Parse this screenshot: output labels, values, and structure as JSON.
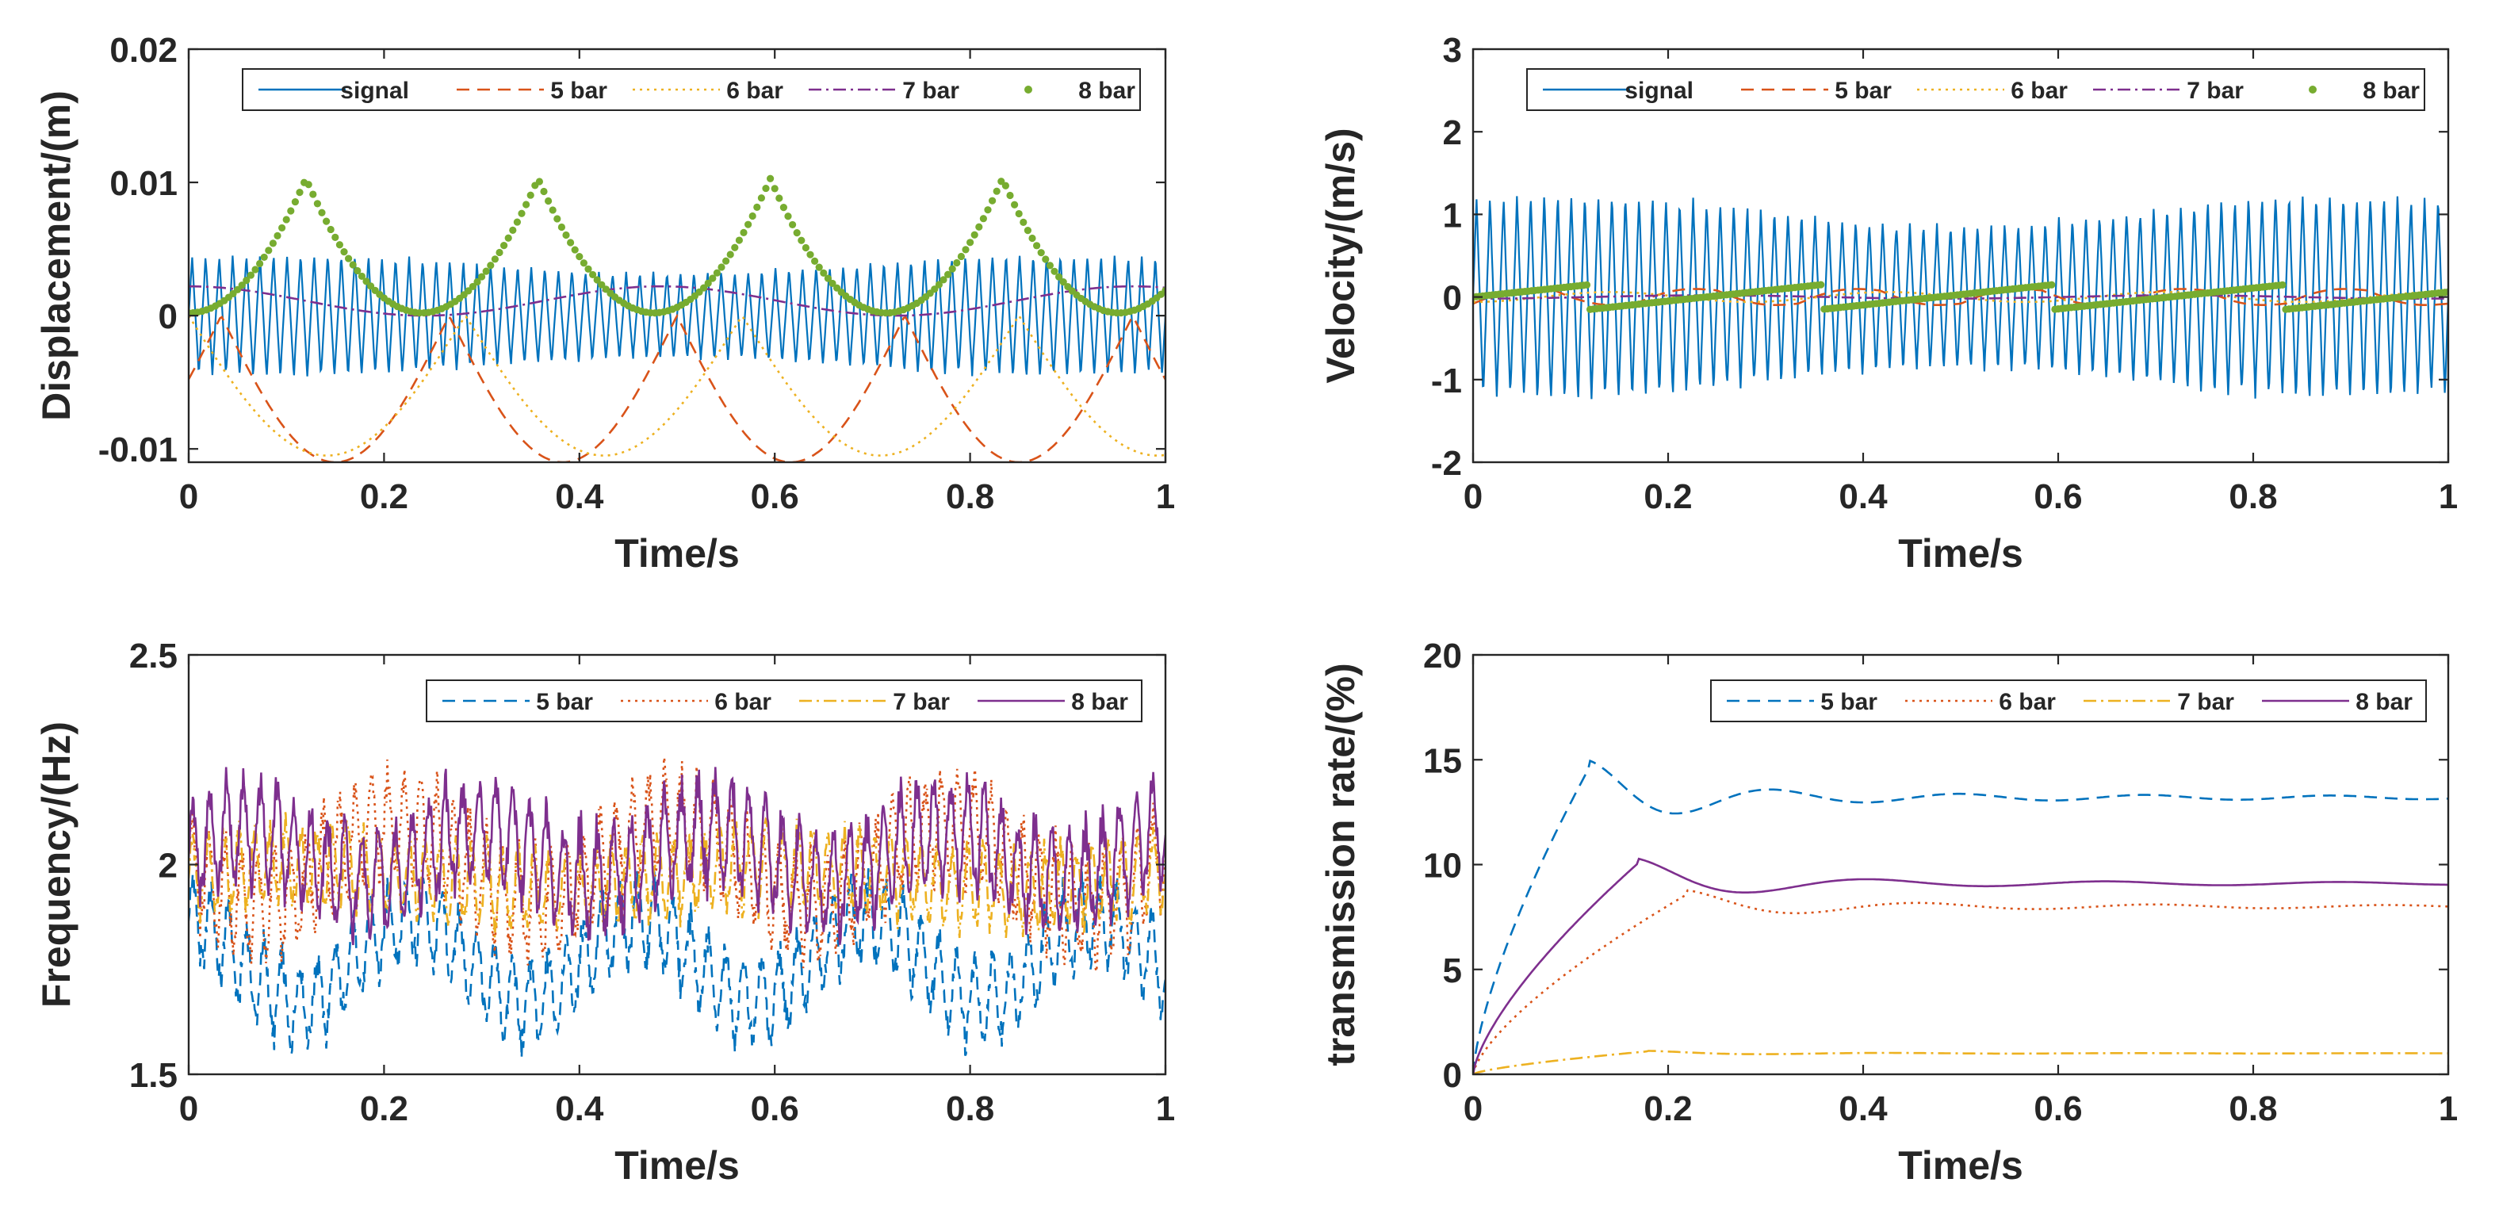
{
  "colors": {
    "blue": "#0072BD",
    "orange": "#D95319",
    "yellow": "#EDB120",
    "purple": "#7E2F8E",
    "green": "#77AC30",
    "axis": "#262626"
  },
  "chart_data": [
    {
      "type": "line",
      "panel": "top-left",
      "xlabel": "Time/s",
      "ylabel": "Displacement/(m)",
      "xlim": [
        0,
        1
      ],
      "ylim": [
        -0.011,
        0.02
      ],
      "xticks": [
        0,
        0.2,
        0.4,
        0.6,
        0.8,
        1
      ],
      "xtick_labels": [
        "0",
        "0.2",
        "0.4",
        "0.6",
        "0.8",
        "1"
      ],
      "yticks": [
        -0.01,
        0,
        0.01,
        0.02
      ],
      "ytick_labels": [
        "-0.01",
        "0",
        "0.01",
        "0.02"
      ],
      "legend_position": "top",
      "series": [
        {
          "name": "signal",
          "color": "blue",
          "style": "solid",
          "kind": "signal",
          "amp": 0.0048,
          "freq": 72
        },
        {
          "name": "5 bar",
          "color": "orange",
          "style": "dashed",
          "kind": "absarc",
          "amp": 0.011,
          "period": 0.2333,
          "phase": 0.0333
        },
        {
          "name": "6 bar",
          "color": "yellow",
          "style": "dotted",
          "kind": "absarc",
          "amp": 0.0105,
          "period": 0.2833,
          "phase": 0.0
        },
        {
          "name": "7 bar",
          "color": "purple",
          "style": "dashdot",
          "kind": "sine",
          "amp": 0.0011,
          "offset": 0.0011,
          "period": 0.4833,
          "phase": 0.0
        },
        {
          "name": "8 bar",
          "color": "green",
          "style": "markers",
          "kind": "peaks",
          "amp": 0.0103,
          "period": 0.2377,
          "phase": 0.12,
          "width": 0.12,
          "points": 220
        }
      ]
    },
    {
      "type": "line",
      "panel": "top-right",
      "xlabel": "Time/s",
      "ylabel": "Velocity/(m/s)",
      "xlim": [
        0,
        1
      ],
      "ylim": [
        -2,
        3
      ],
      "xticks": [
        0,
        0.2,
        0.4,
        0.6,
        0.8,
        1
      ],
      "xtick_labels": [
        "0",
        "0.2",
        "0.4",
        "0.6",
        "0.8",
        "1"
      ],
      "yticks": [
        -2,
        -1,
        0,
        1,
        2,
        3
      ],
      "ytick_labels": [
        "-2",
        "-1",
        "0",
        "1",
        "2",
        "3"
      ],
      "legend_position": "top",
      "series": [
        {
          "name": "signal",
          "color": "blue",
          "style": "solid",
          "kind": "signal",
          "amp": 1.3,
          "freq": 72
        },
        {
          "name": "5 bar",
          "color": "orange",
          "style": "dashed",
          "kind": "sawtooth",
          "amp": 0.2,
          "period": 0.1667
        },
        {
          "name": "6 bar",
          "color": "yellow",
          "style": "dotted",
          "kind": "sine",
          "amp": 0.06,
          "offset": 0,
          "period": 0.2833,
          "phase": 0
        },
        {
          "name": "7 bar",
          "color": "purple",
          "style": "dashdot",
          "kind": "sine",
          "amp": 0.02,
          "offset": 0,
          "period": 0.4833,
          "phase": 0
        },
        {
          "name": "8 bar",
          "color": "green",
          "style": "markers",
          "kind": "ramp",
          "start": -0.15,
          "end": 0.15,
          "period": 0.2377,
          "phase": 0.12,
          "points": 300
        }
      ]
    },
    {
      "type": "line",
      "panel": "bottom-left",
      "xlabel": "Time/s",
      "ylabel": "Frequency/(Hz)",
      "xlim": [
        0,
        1
      ],
      "ylim": [
        1.5,
        2.5
      ],
      "xticks": [
        0,
        0.2,
        0.4,
        0.6,
        0.8,
        1
      ],
      "xtick_labels": [
        "0",
        "0.2",
        "0.4",
        "0.6",
        "0.8",
        "1"
      ],
      "yticks": [
        1.5,
        2,
        2.5
      ],
      "ytick_labels": [
        "1.5",
        "2",
        "2.5"
      ],
      "legend_position": "top-right",
      "series": [
        {
          "name": "5 bar",
          "color": "blue",
          "style": "dashed",
          "kind": "osc",
          "base": 1.77,
          "amp": 0.1,
          "mod": 0.1,
          "freq": 55,
          "period": 0.2333,
          "phase": 0.17
        },
        {
          "name": "6 bar",
          "color": "orange",
          "style": "dotted",
          "kind": "osc",
          "base": 2.0,
          "amp": 0.12,
          "mod": 0.1,
          "freq": 60,
          "period": 0.2833,
          "phase": 0.14
        },
        {
          "name": "7 bar",
          "color": "yellow",
          "style": "dashdot",
          "kind": "osc",
          "base": 1.97,
          "amp": 0.09,
          "mod": 0.03,
          "freq": 63,
          "period": 0.4833,
          "phase": 0.0
        },
        {
          "name": "8 bar",
          "color": "purple",
          "style": "solid",
          "kind": "osc",
          "base": 2.02,
          "amp": 0.12,
          "mod": 0.06,
          "freq": 58,
          "period": 0.2377,
          "phase": 0.0
        }
      ]
    },
    {
      "type": "line",
      "panel": "bottom-right",
      "xlabel": "Time/s",
      "ylabel": "transmission rate/(%)",
      "xlim": [
        0,
        1
      ],
      "ylim": [
        0,
        20
      ],
      "xticks": [
        0,
        0.2,
        0.4,
        0.6,
        0.8,
        1
      ],
      "xtick_labels": [
        "0",
        "0.2",
        "0.4",
        "0.6",
        "0.8",
        "1"
      ],
      "yticks": [
        0,
        5,
        10,
        15,
        20
      ],
      "ytick_labels": [
        "0",
        "5",
        "10",
        "15",
        "20"
      ],
      "legend_position": "top-right",
      "series": [
        {
          "name": "5 bar",
          "color": "blue",
          "style": "dashed",
          "kind": "settle",
          "final": 13.2,
          "peak": 14.7,
          "tpeak": 0.12,
          "osc": 0.7,
          "oscperiod": 0.19
        },
        {
          "name": "6 bar",
          "color": "orange",
          "style": "dotted",
          "kind": "settle",
          "final": 8.0,
          "peak": 8.6,
          "tpeak": 0.22,
          "osc": 0.5,
          "oscperiod": 0.24
        },
        {
          "name": "7 bar",
          "color": "yellow",
          "style": "dashdot",
          "kind": "settle",
          "final": 1.0,
          "peak": 1.1,
          "tpeak": 0.18,
          "osc": 0.05,
          "oscperiod": 0.25
        },
        {
          "name": "8 bar",
          "color": "purple",
          "style": "solid",
          "kind": "settle",
          "final": 9.1,
          "peak": 10.1,
          "tpeak": 0.17,
          "osc": 0.5,
          "oscperiod": 0.24
        }
      ]
    }
  ]
}
